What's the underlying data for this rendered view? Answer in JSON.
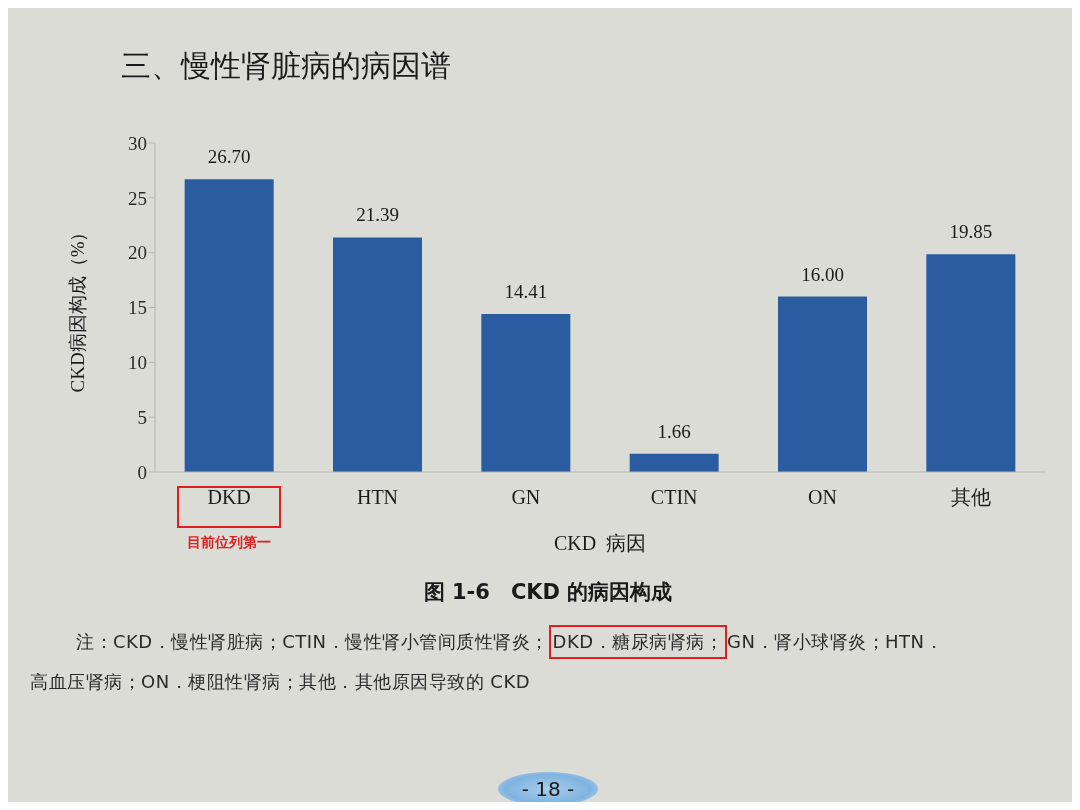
{
  "chart_data": {
    "type": "bar",
    "title": "三、慢性肾脏病的病因谱",
    "subtitle": "图 1-6　CKD 的病因构成",
    "xlabel": "CKD  病因",
    "ylabel": "CKD病因构成（%）",
    "categories": [
      "DKD",
      "HTN",
      "GN",
      "CTIN",
      "ON",
      "其他"
    ],
    "values": [
      26.7,
      21.39,
      14.41,
      1.66,
      16.0,
      19.85
    ],
    "value_labels": [
      "26.70",
      "21.39",
      "14.41",
      "1.66",
      "16.00",
      "19.85"
    ],
    "color": "#2b5ca0",
    "ylim": [
      0,
      30
    ],
    "yticks": [
      0,
      5,
      10,
      15,
      20,
      25,
      30
    ],
    "annotations": [
      "目前位列第一",
      "注：CKD．慢性肾脏病；CTIN．慢性肾小管间质性肾炎；",
      "DKD．糖尿病肾病；",
      "GN．肾小球肾炎；HTN．",
      "高血压肾病；ON．梗阻性肾病；其他．其他原因导致的 CKD",
      "- 18 -"
    ]
  }
}
